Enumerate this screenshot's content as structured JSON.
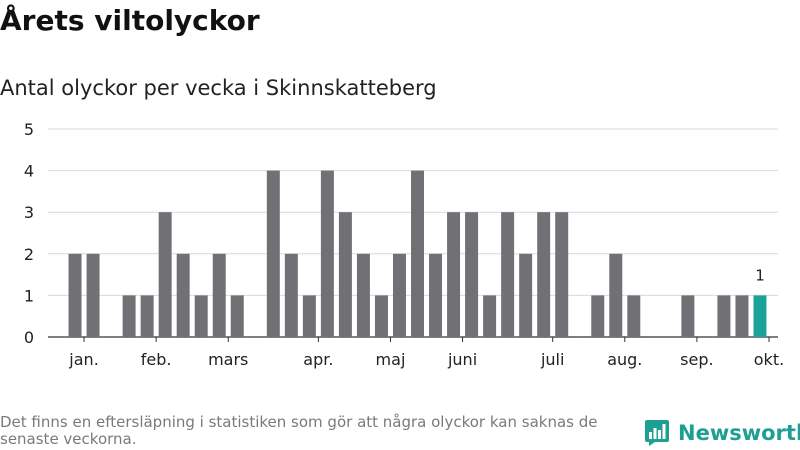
{
  "title": "Årets viltolyckor",
  "subtitle": "Antal olyckor per vecka i Skinnskatteberg",
  "footnote": "Det finns en eftersläpning i statistiken som gör att några olyckor kan saknas de senaste veckorna.",
  "brand": {
    "name": "Newsworthy",
    "icon": "bar-chart-logo-icon",
    "color": "#1f9f93"
  },
  "chart_data": {
    "type": "bar",
    "xlabel": "",
    "ylabel": "",
    "ylim": [
      0,
      5
    ],
    "yticks": [
      0,
      1,
      2,
      3,
      4,
      5
    ],
    "grid": true,
    "month_labels": [
      {
        "label": "jan.",
        "week": 2.5
      },
      {
        "label": "feb.",
        "week": 6.5
      },
      {
        "label": "mars",
        "week": 10.5
      },
      {
        "label": "apr.",
        "week": 15.5
      },
      {
        "label": "maj",
        "week": 19.5
      },
      {
        "label": "juni",
        "week": 23.5
      },
      {
        "label": "juli",
        "week": 28.5
      },
      {
        "label": "aug.",
        "week": 32.5
      },
      {
        "label": "sep.",
        "week": 36.5
      },
      {
        "label": "okt.",
        "week": 40.5
      }
    ],
    "weeks": [
      1,
      2,
      3,
      4,
      5,
      6,
      7,
      8,
      9,
      10,
      11,
      12,
      13,
      14,
      15,
      16,
      17,
      18,
      19,
      20,
      21,
      22,
      23,
      24,
      25,
      26,
      27,
      28,
      29,
      30,
      31,
      32,
      33,
      34,
      35,
      36,
      37,
      38,
      39,
      40
    ],
    "values": [
      0,
      2,
      2,
      0,
      1,
      1,
      3,
      2,
      1,
      2,
      1,
      0,
      4,
      2,
      1,
      4,
      3,
      2,
      1,
      2,
      4,
      2,
      3,
      3,
      1,
      3,
      2,
      3,
      3,
      0,
      1,
      2,
      1,
      0,
      0,
      1,
      0,
      1,
      1,
      1
    ],
    "highlight_index": 39,
    "highlight_label": "1",
    "colors": {
      "bar": "#717075",
      "highlight": "#1ba39a",
      "grid": "#d9d9d9",
      "axis": "#333333"
    }
  }
}
